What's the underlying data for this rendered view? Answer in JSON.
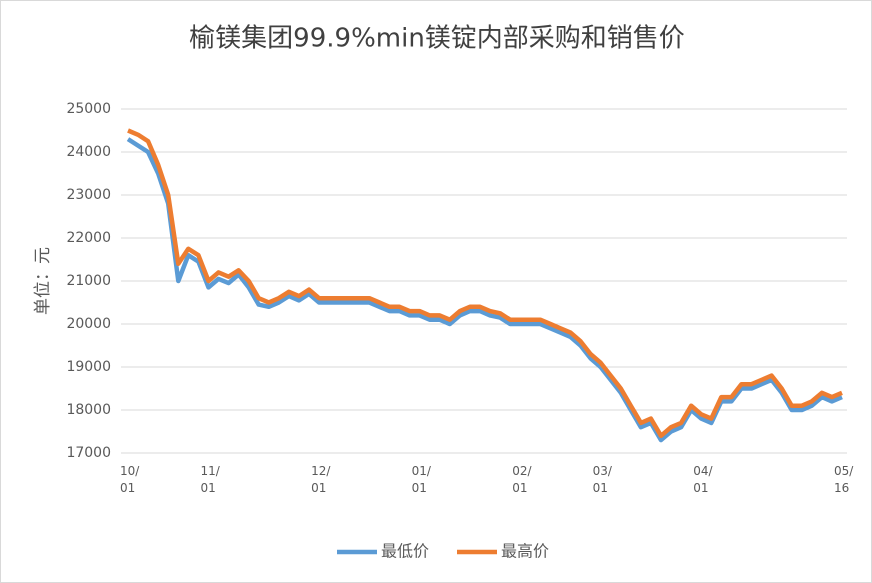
{
  "chart_data": {
    "type": "line",
    "title": "榆镁集团99.9%min镁锭内部采购和销售价",
    "y_label": "单位：元",
    "categories": [
      "10/\n01",
      null,
      null,
      null,
      null,
      null,
      null,
      null,
      "11/\n01",
      null,
      null,
      null,
      null,
      null,
      null,
      null,
      null,
      null,
      null,
      "12/\n01",
      null,
      null,
      null,
      null,
      null,
      null,
      null,
      null,
      null,
      "01/\n01",
      null,
      null,
      null,
      null,
      null,
      null,
      null,
      null,
      null,
      "02/\n01",
      null,
      null,
      null,
      null,
      null,
      null,
      null,
      "03/\n01",
      null,
      null,
      null,
      null,
      null,
      null,
      null,
      null,
      null,
      "04/\n01",
      null,
      null,
      null,
      null,
      null,
      null,
      null,
      null,
      null,
      null,
      null,
      null,
      null,
      "05/\n16"
    ],
    "series": [
      {
        "name": "最低价",
        "color": "#5b9bd5",
        "values": [
          24300,
          24150,
          24000,
          23500,
          22800,
          21000,
          21600,
          21450,
          20850,
          21050,
          20950,
          21150,
          20850,
          20450,
          20400,
          20500,
          20650,
          20550,
          20700,
          20500,
          20500,
          20500,
          20500,
          20500,
          20500,
          20400,
          20300,
          20300,
          20200,
          20200,
          20100,
          20100,
          20000,
          20200,
          20300,
          20300,
          20200,
          20150,
          20000,
          20000,
          20000,
          20000,
          19900,
          19800,
          19700,
          19500,
          19200,
          19000,
          18700,
          18400,
          18000,
          17600,
          17700,
          17300,
          17500,
          17600,
          18000,
          17800,
          17700,
          18200,
          18200,
          18500,
          18500,
          18600,
          18700,
          18400,
          18000,
          18000,
          18100,
          18300,
          18200,
          18300
        ]
      },
      {
        "name": "最高价",
        "color": "#ed7d31",
        "values": [
          24500,
          24400,
          24250,
          23700,
          23000,
          21400,
          21750,
          21600,
          21000,
          21200,
          21100,
          21250,
          21000,
          20600,
          20500,
          20600,
          20750,
          20650,
          20800,
          20600,
          20600,
          20600,
          20600,
          20600,
          20600,
          20500,
          20400,
          20400,
          20300,
          20300,
          20200,
          20200,
          20100,
          20300,
          20400,
          20400,
          20300,
          20250,
          20100,
          20100,
          20100,
          20100,
          20000,
          19900,
          19800,
          19600,
          19300,
          19100,
          18800,
          18500,
          18100,
          17700,
          17800,
          17400,
          17600,
          17700,
          18100,
          17900,
          17800,
          18300,
          18300,
          18600,
          18600,
          18700,
          18800,
          18500,
          18100,
          18100,
          18200,
          18400,
          18300,
          18400
        ]
      }
    ],
    "ylim": [
      17000,
      25000
    ],
    "yticks": [
      17000,
      18000,
      19000,
      20000,
      21000,
      22000,
      23000,
      24000,
      25000
    ],
    "grid": true,
    "legend": "bottom"
  }
}
